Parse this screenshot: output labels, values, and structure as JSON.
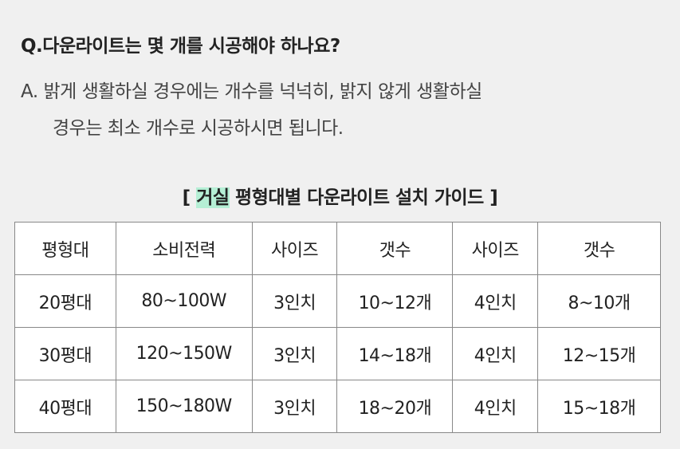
{
  "question": "Q.다운라이트는 몇 개를 시공해야 하나요?",
  "answer_line1": "A. 밝게 생활하실 경우에는 개수를 넉넉히, 밝지 않게 생활하실",
  "answer_line2": "경우는 최소 개수로 시공하시면 됩니다.",
  "guide": {
    "open": "[ ",
    "highlight": "거실",
    "rest": " 평형대별 다운라이트 설치 가이드 ]",
    "highlight_color": "#b5efd5"
  },
  "table": {
    "headers": [
      "평형대",
      "소비전력",
      "사이즈",
      "갯수",
      "사이즈",
      "갯수"
    ],
    "rows": [
      [
        "20평대",
        "80~100W",
        "3인치",
        "10~12개",
        "4인치",
        "8~10개"
      ],
      [
        "30평대",
        "120~150W",
        "3인치",
        "14~18개",
        "4인치",
        "12~15개"
      ],
      [
        "40평대",
        "150~180W",
        "3인치",
        "18~20개",
        "4인치",
        "15~18개"
      ]
    ]
  }
}
